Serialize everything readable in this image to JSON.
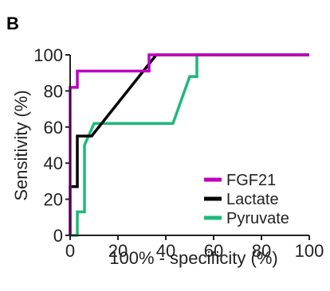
{
  "panel_label": "B",
  "chart_data": {
    "type": "line",
    "xlabel": "100% - specificity (%)",
    "ylabel": "Sensitivity (%)",
    "xlim": [
      0,
      100
    ],
    "ylim": [
      0,
      100
    ],
    "xticks": [
      0,
      20,
      40,
      60,
      80,
      100
    ],
    "yticks": [
      0,
      20,
      40,
      60,
      80,
      100
    ],
    "grid": false,
    "legend_position": "bottom-right",
    "series": [
      {
        "name": "FGF21",
        "color": "#c000c0",
        "x": [
          0,
          0,
          3,
          3,
          33,
          33,
          100
        ],
        "y": [
          0,
          82,
          82,
          91,
          91,
          100,
          100
        ]
      },
      {
        "name": "Lactate",
        "color": "#000000",
        "x": [
          0,
          0,
          3,
          3,
          9,
          36,
          100
        ],
        "y": [
          0,
          27,
          27,
          55,
          55,
          100,
          100
        ]
      },
      {
        "name": "Pyruvate",
        "color": "#1fb87a",
        "x": [
          0,
          3,
          3,
          6,
          6,
          10,
          43,
          50,
          53,
          53,
          100
        ],
        "y": [
          0,
          0,
          13,
          13,
          50,
          62,
          62,
          88,
          88,
          100,
          100
        ]
      }
    ]
  }
}
